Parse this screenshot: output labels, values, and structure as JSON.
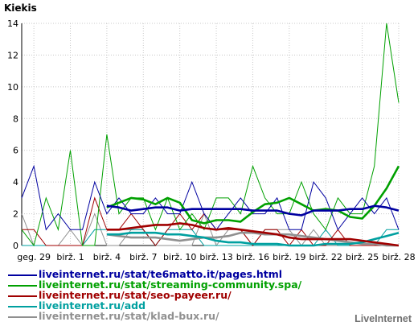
{
  "chart_data": {
    "type": "line",
    "title": "Kiekis",
    "ylim": [
      0,
      14
    ],
    "yticks": [
      0,
      2,
      4,
      6,
      8,
      10,
      12,
      14
    ],
    "grid": true,
    "x_labels": [
      "geg. 29",
      "birž. 1",
      "birž. 4",
      "birž. 7",
      "birž. 10",
      "birž. 13",
      "birž. 16",
      "birž. 19",
      "birž. 22",
      "birž. 25",
      "birž. 28"
    ],
    "x": [
      "geg. 28",
      "geg. 29",
      "geg. 30",
      "geg. 31",
      "birž. 1",
      "birž. 2",
      "birž. 3",
      "birž. 4",
      "birž. 5",
      "birž. 6",
      "birž. 7",
      "birž. 8",
      "birž. 9",
      "birž. 10",
      "birž. 11",
      "birž. 12",
      "birž. 13",
      "birž. 14",
      "birž. 15",
      "birž. 16",
      "birž. 17",
      "birž. 18",
      "birž. 19",
      "birž. 20",
      "birž. 21",
      "birž. 22",
      "birž. 23",
      "birž. 24",
      "birž. 25",
      "birž. 26",
      "birž. 27",
      "birž. 28"
    ],
    "series": [
      {
        "name": "liveinternet.ru/stat/te6matto.it/pages.html",
        "color": "#0000a0",
        "values": [
          3,
          5,
          1,
          2,
          1,
          1,
          4,
          2,
          3,
          2,
          2,
          3,
          2,
          2,
          4,
          2,
          1,
          2,
          3,
          2,
          2,
          3,
          1,
          1,
          4,
          3,
          1,
          2,
          3,
          2,
          3,
          1
        ],
        "avg": [
          null,
          null,
          null,
          null,
          null,
          null,
          null,
          2.5,
          2.4,
          2.2,
          2.3,
          2.4,
          2.4,
          2.2,
          2.3,
          2.3,
          2.3,
          2.3,
          2.3,
          2.2,
          2.2,
          2.2,
          2.0,
          1.9,
          2.2,
          2.2,
          2.2,
          2.3,
          2.3,
          2.5,
          2.4,
          2.2
        ]
      },
      {
        "name": "liveinternet.ru/stat/streaming-community.spa/",
        "color": "#00a000",
        "values": [
          1,
          0,
          3,
          1,
          6,
          0,
          0,
          7,
          2,
          3,
          3,
          1,
          3,
          1,
          2,
          1,
          3,
          3,
          2,
          5,
          3,
          2,
          2,
          4,
          2,
          1,
          3,
          2,
          2,
          5,
          14,
          9
        ],
        "avg": [
          null,
          null,
          null,
          null,
          null,
          null,
          null,
          2.4,
          2.7,
          3.0,
          2.9,
          2.6,
          3.0,
          2.7,
          1.6,
          1.4,
          1.6,
          1.6,
          1.5,
          2.1,
          2.6,
          2.7,
          3.0,
          2.6,
          2.2,
          2.3,
          2.2,
          1.8,
          1.7,
          2.5,
          3.6,
          5.0
        ]
      },
      {
        "name": "liveinternet.ru/stat/seo-payeer.ru/",
        "color": "#a00000",
        "values": [
          1,
          1,
          0,
          0,
          0,
          0,
          3,
          1,
          1,
          2,
          1,
          0,
          1,
          2,
          1,
          2,
          1,
          1,
          1,
          0,
          1,
          1,
          0,
          1,
          0,
          0,
          1,
          0,
          0,
          0,
          0,
          0
        ],
        "avg": [
          null,
          null,
          null,
          null,
          null,
          null,
          null,
          1.0,
          1.0,
          1.1,
          1.2,
          1.3,
          1.3,
          1.4,
          1.3,
          1.1,
          1.0,
          1.1,
          1.0,
          0.9,
          0.8,
          0.7,
          0.5,
          0.4,
          0.4,
          0.4,
          0.4,
          0.4,
          0.3,
          0.2,
          0.1,
          0.0
        ]
      },
      {
        "name": "liveinternet.ru/add",
        "color": "#00a0a0",
        "values": [
          0,
          0,
          0,
          0,
          0,
          0,
          1,
          1,
          1,
          1,
          1,
          0,
          1,
          1,
          1,
          0,
          0,
          0,
          0,
          0,
          0,
          0,
          0,
          0,
          0,
          1,
          0,
          0,
          0,
          0,
          1,
          1
        ],
        "avg": [
          null,
          null,
          null,
          null,
          null,
          null,
          null,
          0.7,
          0.7,
          0.8,
          0.8,
          0.8,
          0.7,
          0.7,
          0.6,
          0.5,
          0.3,
          0.2,
          0.2,
          0.1,
          0.1,
          0.1,
          0.0,
          0.0,
          0.0,
          0.1,
          0.1,
          0.1,
          0.2,
          0.4,
          0.6,
          0.8
        ]
      },
      {
        "name": "liveinternet.ru/stat/klad-bux.ru/",
        "color": "#909090",
        "values": [
          2,
          0,
          0,
          0,
          1,
          0,
          2,
          0,
          0,
          1,
          1,
          0,
          0,
          0,
          0,
          2,
          0,
          1,
          1,
          0,
          1,
          1,
          1,
          0,
          1,
          0,
          0,
          0,
          0,
          0,
          0,
          0
        ],
        "avg": [
          null,
          null,
          null,
          null,
          null,
          null,
          null,
          0.7,
          0.6,
          0.5,
          0.5,
          0.5,
          0.4,
          0.3,
          0.4,
          0.5,
          0.5,
          0.6,
          0.8,
          0.8,
          0.7,
          0.7,
          0.7,
          0.6,
          0.5,
          0.4,
          0.3,
          0.2,
          0.1,
          0.1,
          0.0,
          0.0
        ]
      }
    ]
  },
  "legend": [
    "liveinternet.ru/stat/te6matto.it/pages.html",
    "liveinternet.ru/stat/streaming-community.spa/",
    "liveinternet.ru/stat/seo-payeer.ru/",
    "liveinternet.ru/add",
    "liveinternet.ru/stat/klad-bux.ru/"
  ],
  "brand": "LiveInternet"
}
